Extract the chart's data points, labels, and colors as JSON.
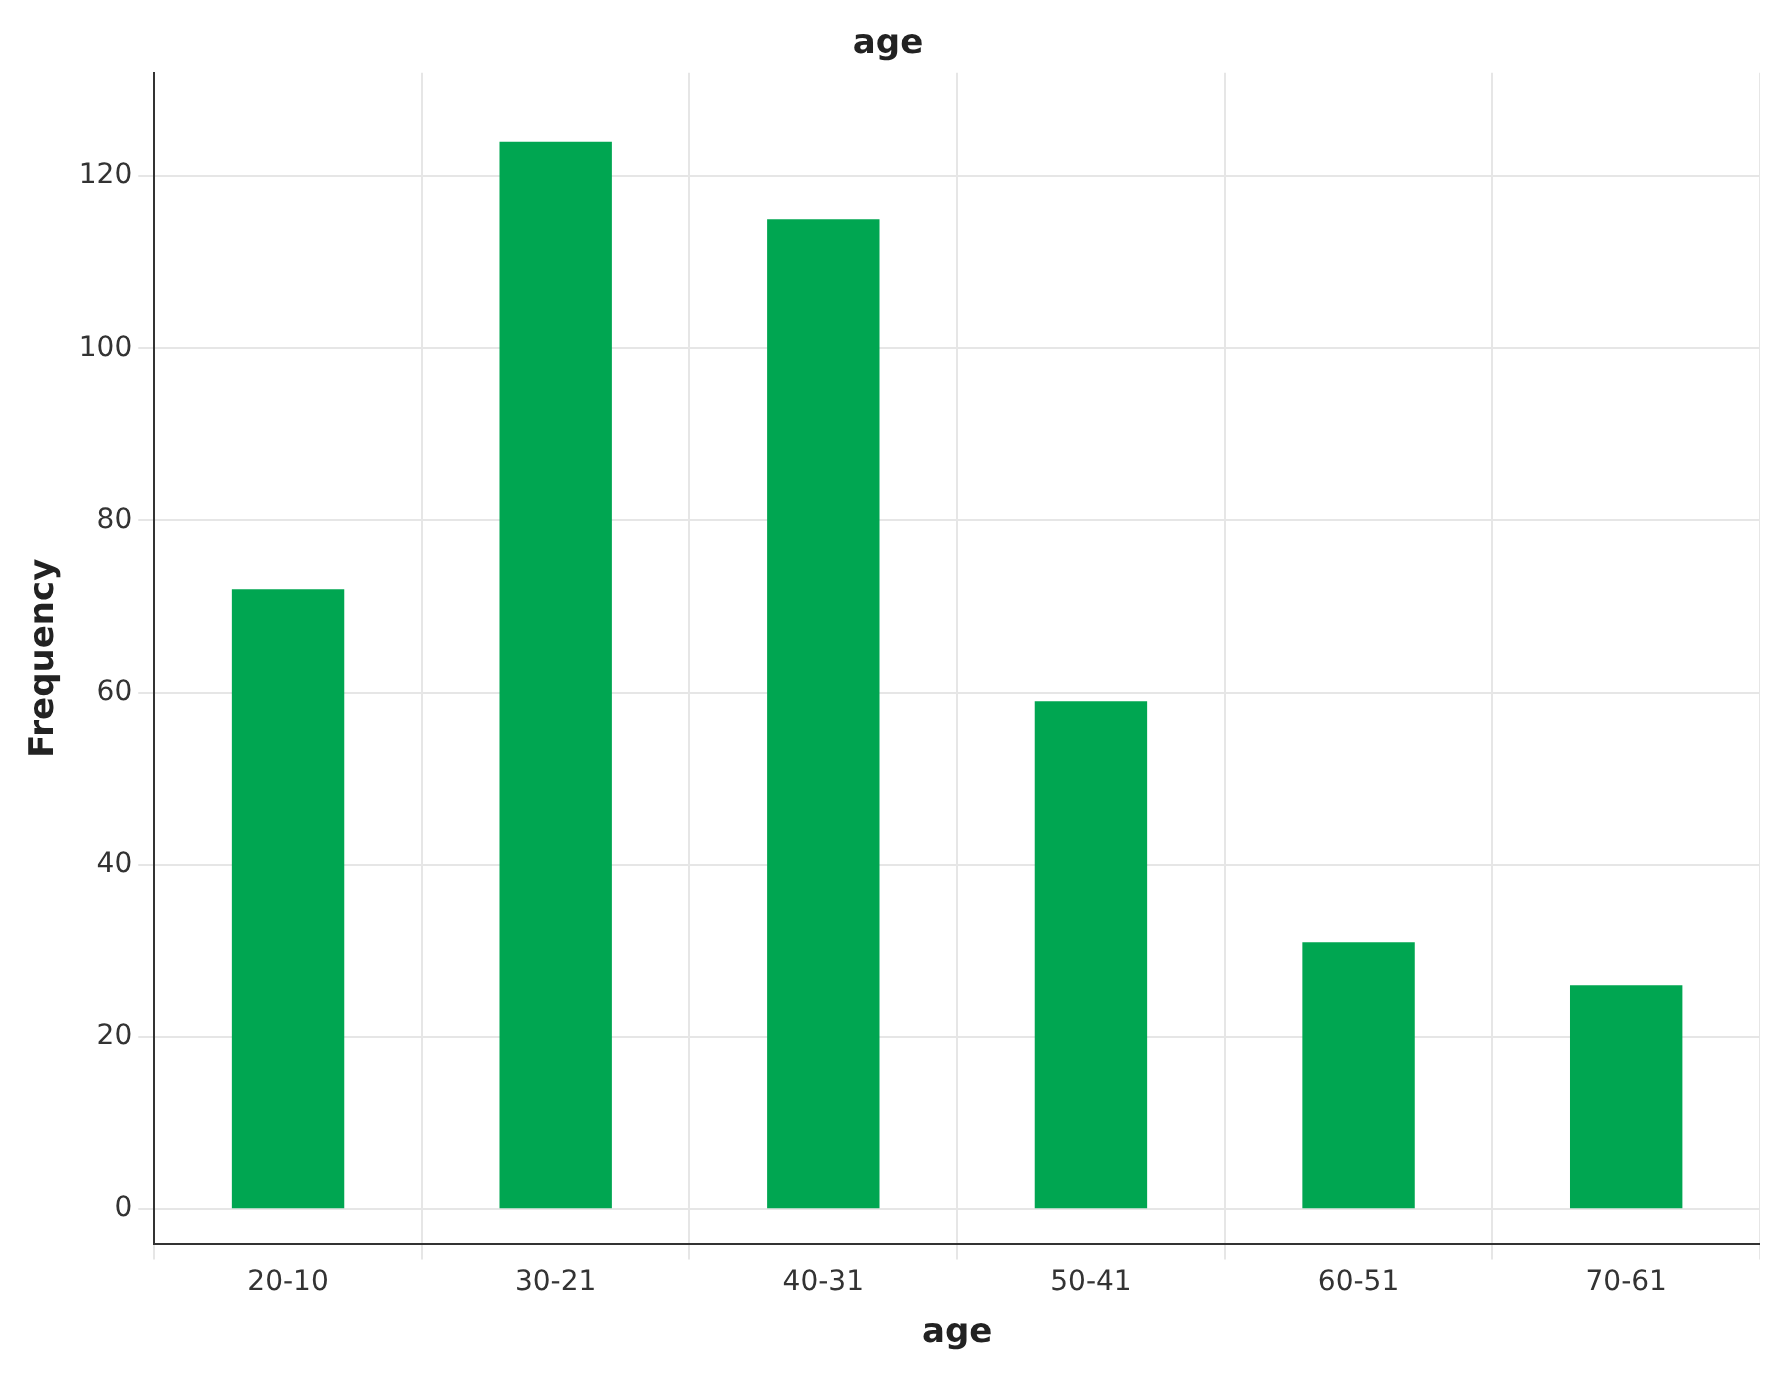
{
  "chart_data": {
    "type": "bar",
    "title": "age",
    "xlabel": "age",
    "ylabel": "Frequency",
    "categories": [
      "20-10",
      "30-21",
      "40-31",
      "50-41",
      "60-51",
      "70-61"
    ],
    "values": [
      72,
      124,
      115,
      59,
      31,
      26
    ],
    "color": "#00a651",
    "ylim": [
      -4,
      132
    ],
    "yticks": [
      0,
      20,
      40,
      60,
      80,
      100,
      120
    ],
    "grid": true
  }
}
